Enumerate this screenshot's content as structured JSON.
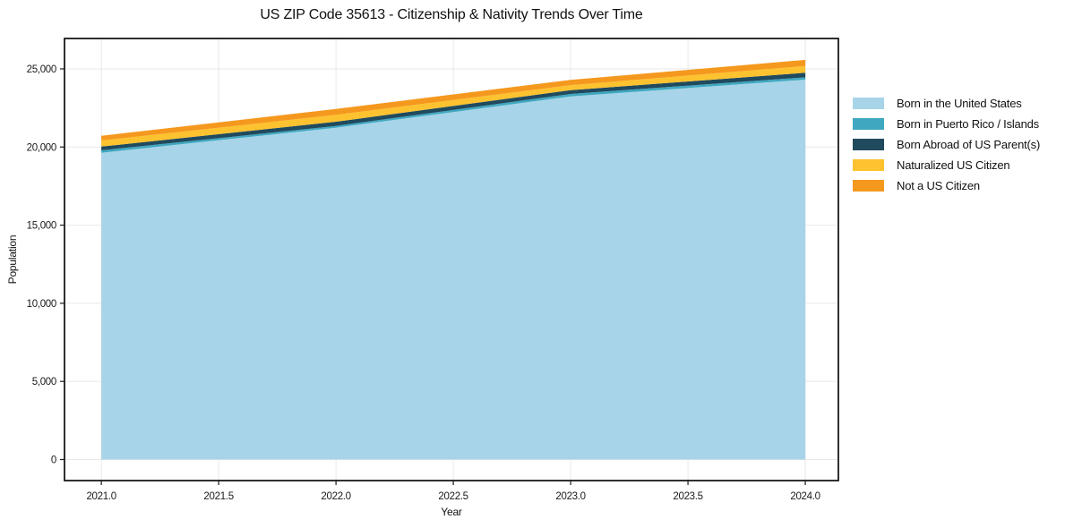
{
  "chart_data": {
    "type": "area",
    "stacked": true,
    "title": "US ZIP Code 35613 - Citizenship & Nativity Trends Over Time",
    "xlabel": "Year",
    "ylabel": "Population",
    "x": [
      2021,
      2022,
      2023,
      2024
    ],
    "series": [
      {
        "name": "Born in the United States",
        "color": "#A7D4E8",
        "values": [
          19630,
          21235,
          23240,
          24310
        ]
      },
      {
        "name": "Born in Puerto Rico / Islands",
        "color": "#3FA8C0",
        "values": [
          155,
          115,
          155,
          150
        ]
      },
      {
        "name": "Born Abroad of US Parent(s)",
        "color": "#204A5E",
        "values": [
          245,
          270,
          245,
          290
        ]
      },
      {
        "name": "Naturalized US Citizen",
        "color": "#FDC22F",
        "values": [
          385,
          440,
          325,
          440
        ]
      },
      {
        "name": "Not a US Citizen",
        "color": "#F5981E",
        "values": [
          305,
          380,
          330,
          385
        ]
      }
    ],
    "totals": [
      20720,
      22440,
      24295,
      25575
    ],
    "xticks": [
      2021.0,
      2021.5,
      2022.0,
      2022.5,
      2023.0,
      2023.5,
      2024.0
    ],
    "xtick_labels": [
      "2021.0",
      "2021.5",
      "2022.0",
      "2022.5",
      "2023.0",
      "2023.5",
      "2024.0"
    ],
    "yticks": [
      0,
      5000,
      10000,
      15000,
      20000,
      25000
    ],
    "ytick_labels": [
      "0",
      "5,000",
      "10,000",
      "15,000",
      "20,000",
      "25,000"
    ],
    "xlim": [
      2020.843,
      2024.141
    ],
    "ylim": [
      -1346,
      26946
    ],
    "grid": true,
    "grid_color": "#e8e8e8",
    "axis_color": "#1a1a1a",
    "background": "#ffffff",
    "legend_position": "right"
  }
}
